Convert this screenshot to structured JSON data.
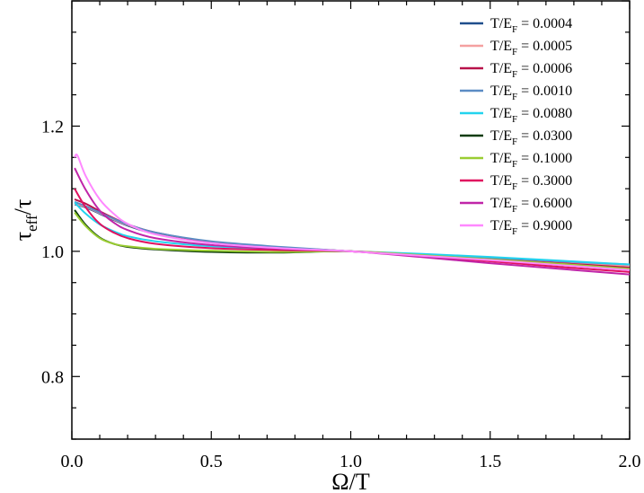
{
  "chart_data": {
    "type": "line",
    "xlabel": "Ω/T",
    "ylabel_main": "τ",
    "ylabel_sub": "eff",
    "ylabel_tail": "/τ",
    "xlim": [
      0.0,
      2.0
    ],
    "ylim": [
      0.7,
      1.4
    ],
    "xticks": [
      0.0,
      0.5,
      1.0,
      1.5,
      2.0
    ],
    "xtick_labels": [
      "0.0",
      "0.5",
      "1.0",
      "1.5",
      "2.0"
    ],
    "yticks": [
      0.8,
      1.0,
      1.2
    ],
    "ytick_labels": [
      "0.8",
      "1.0",
      "1.2"
    ],
    "grid": false,
    "legend_position": "top-right",
    "legend_prefix": "T/E",
    "legend_sub": "F",
    "series": [
      {
        "name": "0.0004",
        "label": " = 0.0004",
        "color": "#1f4e8c",
        "x": [
          0.01,
          0.05,
          0.1,
          0.15,
          0.2,
          0.3,
          0.5,
          0.75,
          1.0,
          1.25,
          1.5,
          1.75,
          2.0
        ],
        "y": [
          1.075,
          1.07,
          1.06,
          1.05,
          1.041,
          1.028,
          1.014,
          1.006,
          1.0,
          0.995,
          0.989,
          0.983,
          0.978
        ]
      },
      {
        "name": "0.0005",
        "label": " = 0.0005",
        "color": "#f4a0a0",
        "x": [
          0.01,
          0.05,
          0.1,
          0.15,
          0.2,
          0.3,
          0.5,
          0.75,
          1.0,
          1.25,
          1.5,
          1.75,
          2.0
        ],
        "y": [
          1.076,
          1.071,
          1.061,
          1.051,
          1.042,
          1.029,
          1.015,
          1.006,
          1.0,
          0.995,
          0.989,
          0.983,
          0.977
        ]
      },
      {
        "name": "0.0006",
        "label": " = 0.0006",
        "color": "#b8124a",
        "x": [
          0.01,
          0.05,
          0.1,
          0.15,
          0.2,
          0.3,
          0.5,
          0.75,
          1.0,
          1.25,
          1.5,
          1.75,
          2.0
        ],
        "y": [
          1.083,
          1.076,
          1.064,
          1.053,
          1.043,
          1.03,
          1.015,
          1.006,
          1.0,
          0.994,
          0.988,
          0.981,
          0.974
        ]
      },
      {
        "name": "0.0010",
        "label": " = 0.0010",
        "color": "#5b8cc4",
        "x": [
          0.01,
          0.05,
          0.1,
          0.15,
          0.2,
          0.3,
          0.5,
          0.75,
          1.0,
          1.25,
          1.5,
          1.75,
          2.0
        ],
        "y": [
          1.079,
          1.072,
          1.062,
          1.052,
          1.043,
          1.03,
          1.016,
          1.007,
          1.0,
          0.995,
          0.99,
          0.984,
          0.979
        ]
      },
      {
        "name": "0.0080",
        "label": " = 0.0080",
        "color": "#22d3ee",
        "x": [
          0.01,
          0.05,
          0.1,
          0.15,
          0.2,
          0.3,
          0.5,
          0.75,
          1.0,
          1.25,
          1.5,
          1.75,
          2.0
        ],
        "y": [
          1.078,
          1.06,
          1.043,
          1.032,
          1.024,
          1.016,
          1.008,
          1.004,
          1.0,
          0.996,
          0.991,
          0.985,
          0.979
        ]
      },
      {
        "name": "0.0300",
        "label": " = 0.0300",
        "color": "#0d3b0d",
        "x": [
          0.01,
          0.05,
          0.1,
          0.15,
          0.2,
          0.3,
          0.5,
          0.75,
          1.0,
          1.25,
          1.5,
          1.75,
          2.0
        ],
        "y": [
          1.066,
          1.042,
          1.022,
          1.012,
          1.007,
          1.003,
          0.999,
          0.998,
          1.0,
          0.993,
          0.986,
          0.978,
          0.971
        ]
      },
      {
        "name": "0.1000",
        "label": " = 0.1000",
        "color": "#9acd32",
        "x": [
          0.01,
          0.05,
          0.1,
          0.15,
          0.2,
          0.3,
          0.5,
          0.75,
          1.0,
          1.25,
          1.5,
          1.75,
          2.0
        ],
        "y": [
          1.062,
          1.04,
          1.021,
          1.012,
          1.008,
          1.004,
          1.001,
          0.999,
          1.0,
          0.994,
          0.987,
          0.98,
          0.972
        ]
      },
      {
        "name": "0.3000",
        "label": " = 0.3000",
        "color": "#e0115f",
        "x": [
          0.01,
          0.05,
          0.1,
          0.15,
          0.2,
          0.3,
          0.5,
          0.75,
          1.0,
          1.25,
          1.5,
          1.75,
          2.0
        ],
        "y": [
          1.1,
          1.07,
          1.044,
          1.03,
          1.021,
          1.012,
          1.005,
          1.002,
          1.0,
          0.992,
          0.984,
          0.975,
          0.967
        ]
      },
      {
        "name": "0.6000",
        "label": " = 0.6000",
        "color": "#c025a8",
        "x": [
          0.01,
          0.05,
          0.1,
          0.15,
          0.2,
          0.3,
          0.5,
          0.75,
          1.0,
          1.25,
          1.5,
          1.75,
          2.0
        ],
        "y": [
          1.133,
          1.098,
          1.065,
          1.046,
          1.034,
          1.021,
          1.01,
          1.004,
          1.0,
          0.991,
          0.981,
          0.972,
          0.963
        ]
      },
      {
        "name": "0.9000",
        "label": " = 0.9000",
        "color": "#ff88ff",
        "x": [
          0.01,
          0.02,
          0.05,
          0.1,
          0.15,
          0.2,
          0.3,
          0.5,
          0.75,
          1.0,
          1.25,
          1.5,
          1.75,
          2.0
        ],
        "y": [
          1.15,
          1.153,
          1.12,
          1.083,
          1.06,
          1.044,
          1.027,
          1.013,
          1.005,
          1.0,
          0.993,
          0.986,
          0.978,
          0.97
        ]
      }
    ]
  }
}
